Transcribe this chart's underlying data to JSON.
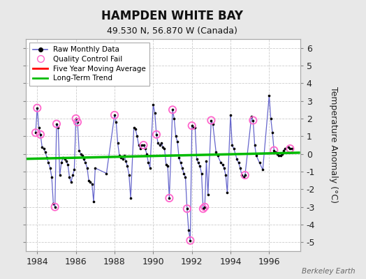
{
  "title": "HAMPDEN WHITE BAY",
  "subtitle": "49.530 N, 56.870 W (Canada)",
  "ylabel": "Temperature Anomaly (°C)",
  "watermark": "Berkeley Earth",
  "background_color": "#e8e8e8",
  "plot_bg_color": "#ffffff",
  "ylim": [
    -5.5,
    6.5
  ],
  "xlim": [
    1983.4,
    1997.6
  ],
  "xticks": [
    1984,
    1986,
    1988,
    1990,
    1992,
    1994,
    1996
  ],
  "yticks": [
    -5,
    -4,
    -3,
    -2,
    -1,
    0,
    1,
    2,
    3,
    4,
    5,
    6
  ],
  "raw_line_color": "#6666cc",
  "raw_dot_color": "#000000",
  "qc_fail_color": "#ff66cc",
  "ma_color": "#ff0000",
  "trend_color": "#00bb00",
  "raw_data": [
    [
      1983.917,
      1.2
    ],
    [
      1984.0,
      2.6
    ],
    [
      1984.083,
      1.5
    ],
    [
      1984.167,
      1.1
    ],
    [
      1984.25,
      0.4
    ],
    [
      1984.333,
      0.3
    ],
    [
      1984.417,
      0.1
    ],
    [
      1984.5,
      -0.2
    ],
    [
      1984.583,
      -0.5
    ],
    [
      1984.667,
      -0.8
    ],
    [
      1984.75,
      -1.3
    ],
    [
      1984.833,
      -2.8
    ],
    [
      1984.917,
      -3.0
    ],
    [
      1985.0,
      1.7
    ],
    [
      1985.083,
      1.5
    ],
    [
      1985.167,
      -1.2
    ],
    [
      1985.25,
      -0.5
    ],
    [
      1985.333,
      -0.2
    ],
    [
      1985.417,
      -0.3
    ],
    [
      1985.5,
      -0.4
    ],
    [
      1985.583,
      -0.6
    ],
    [
      1985.667,
      -1.3
    ],
    [
      1985.75,
      -1.6
    ],
    [
      1985.833,
      -1.2
    ],
    [
      1985.917,
      -0.9
    ],
    [
      1986.0,
      2.0
    ],
    [
      1986.083,
      1.8
    ],
    [
      1986.167,
      0.2
    ],
    [
      1986.25,
      0.0
    ],
    [
      1986.333,
      -0.1
    ],
    [
      1986.417,
      -0.3
    ],
    [
      1986.5,
      -0.5
    ],
    [
      1986.583,
      -0.8
    ],
    [
      1986.667,
      -1.5
    ],
    [
      1986.75,
      -1.6
    ],
    [
      1986.833,
      -1.7
    ],
    [
      1986.917,
      -2.7
    ],
    [
      1987.0,
      -0.8
    ],
    [
      1987.583,
      -1.1
    ],
    [
      1988.0,
      2.2
    ],
    [
      1988.083,
      1.8
    ],
    [
      1988.167,
      0.6
    ],
    [
      1988.25,
      -0.1
    ],
    [
      1988.333,
      -0.2
    ],
    [
      1988.417,
      -0.3
    ],
    [
      1988.5,
      -0.1
    ],
    [
      1988.583,
      -0.4
    ],
    [
      1988.667,
      -0.7
    ],
    [
      1988.75,
      -1.2
    ],
    [
      1988.833,
      -2.5
    ],
    [
      1989.0,
      1.5
    ],
    [
      1989.083,
      1.4
    ],
    [
      1989.167,
      1.0
    ],
    [
      1989.25,
      0.5
    ],
    [
      1989.333,
      0.3
    ],
    [
      1989.417,
      0.5
    ],
    [
      1989.5,
      0.5
    ],
    [
      1989.583,
      0.3
    ],
    [
      1989.667,
      0.0
    ],
    [
      1989.75,
      -0.5
    ],
    [
      1989.833,
      -0.8
    ],
    [
      1990.0,
      2.8
    ],
    [
      1990.083,
      2.3
    ],
    [
      1990.167,
      1.1
    ],
    [
      1990.25,
      0.6
    ],
    [
      1990.333,
      0.5
    ],
    [
      1990.417,
      0.6
    ],
    [
      1990.5,
      0.4
    ],
    [
      1990.583,
      0.3
    ],
    [
      1990.667,
      -0.6
    ],
    [
      1990.75,
      -0.7
    ],
    [
      1990.833,
      -2.5
    ],
    [
      1991.0,
      2.5
    ],
    [
      1991.083,
      2.0
    ],
    [
      1991.167,
      1.0
    ],
    [
      1991.25,
      0.7
    ],
    [
      1991.333,
      -0.2
    ],
    [
      1991.417,
      -0.5
    ],
    [
      1991.5,
      -0.8
    ],
    [
      1991.583,
      -1.1
    ],
    [
      1991.667,
      -1.3
    ],
    [
      1991.75,
      -3.1
    ],
    [
      1991.833,
      -4.3
    ],
    [
      1991.917,
      -4.9
    ],
    [
      1992.0,
      1.6
    ],
    [
      1992.083,
      1.5
    ],
    [
      1992.167,
      1.5
    ],
    [
      1992.25,
      -0.3
    ],
    [
      1992.333,
      -0.5
    ],
    [
      1992.417,
      -0.7
    ],
    [
      1992.5,
      -1.1
    ],
    [
      1992.583,
      -3.1
    ],
    [
      1992.667,
      -3.0
    ],
    [
      1992.75,
      -0.4
    ],
    [
      1992.833,
      -2.3
    ],
    [
      1993.0,
      1.9
    ],
    [
      1993.083,
      1.7
    ],
    [
      1993.25,
      0.1
    ],
    [
      1993.333,
      -0.1
    ],
    [
      1993.5,
      -0.5
    ],
    [
      1993.583,
      -0.6
    ],
    [
      1993.667,
      -0.8
    ],
    [
      1993.75,
      -1.2
    ],
    [
      1993.833,
      -2.2
    ],
    [
      1994.0,
      2.2
    ],
    [
      1994.083,
      0.5
    ],
    [
      1994.167,
      0.3
    ],
    [
      1994.333,
      -0.3
    ],
    [
      1994.417,
      -0.5
    ],
    [
      1994.5,
      -0.8
    ],
    [
      1994.583,
      -1.2
    ],
    [
      1994.667,
      -1.3
    ],
    [
      1994.75,
      -1.2
    ],
    [
      1995.083,
      2.1
    ],
    [
      1995.167,
      1.9
    ],
    [
      1995.25,
      0.5
    ],
    [
      1995.333,
      -0.1
    ],
    [
      1995.5,
      -0.5
    ],
    [
      1995.667,
      -0.9
    ],
    [
      1996.0,
      3.3
    ],
    [
      1996.083,
      2.0
    ],
    [
      1996.167,
      1.2
    ],
    [
      1996.25,
      0.2
    ],
    [
      1996.333,
      0.1
    ],
    [
      1996.417,
      0.0
    ],
    [
      1996.5,
      -0.1
    ],
    [
      1996.583,
      -0.1
    ],
    [
      1996.667,
      0.0
    ],
    [
      1996.75,
      0.2
    ],
    [
      1996.833,
      0.3
    ],
    [
      1997.0,
      0.4
    ],
    [
      1997.083,
      0.3
    ],
    [
      1997.167,
      0.3
    ]
  ],
  "qc_fail_points": [
    [
      1983.917,
      1.2
    ],
    [
      1984.0,
      2.6
    ],
    [
      1984.167,
      1.1
    ],
    [
      1984.917,
      -3.0
    ],
    [
      1985.0,
      1.7
    ],
    [
      1986.0,
      2.0
    ],
    [
      1986.083,
      1.8
    ],
    [
      1988.0,
      2.2
    ],
    [
      1989.5,
      0.5
    ],
    [
      1990.167,
      1.1
    ],
    [
      1990.833,
      -2.5
    ],
    [
      1991.0,
      2.5
    ],
    [
      1991.75,
      -3.1
    ],
    [
      1991.917,
      -4.9
    ],
    [
      1992.0,
      1.6
    ],
    [
      1992.583,
      -3.1
    ],
    [
      1992.667,
      -3.0
    ],
    [
      1993.0,
      1.9
    ],
    [
      1994.75,
      -1.2
    ],
    [
      1995.167,
      1.9
    ],
    [
      1996.25,
      0.2
    ],
    [
      1997.083,
      0.3
    ]
  ],
  "trend_x": [
    1983.4,
    1997.6
  ],
  "trend_y": [
    -0.28,
    0.07
  ]
}
